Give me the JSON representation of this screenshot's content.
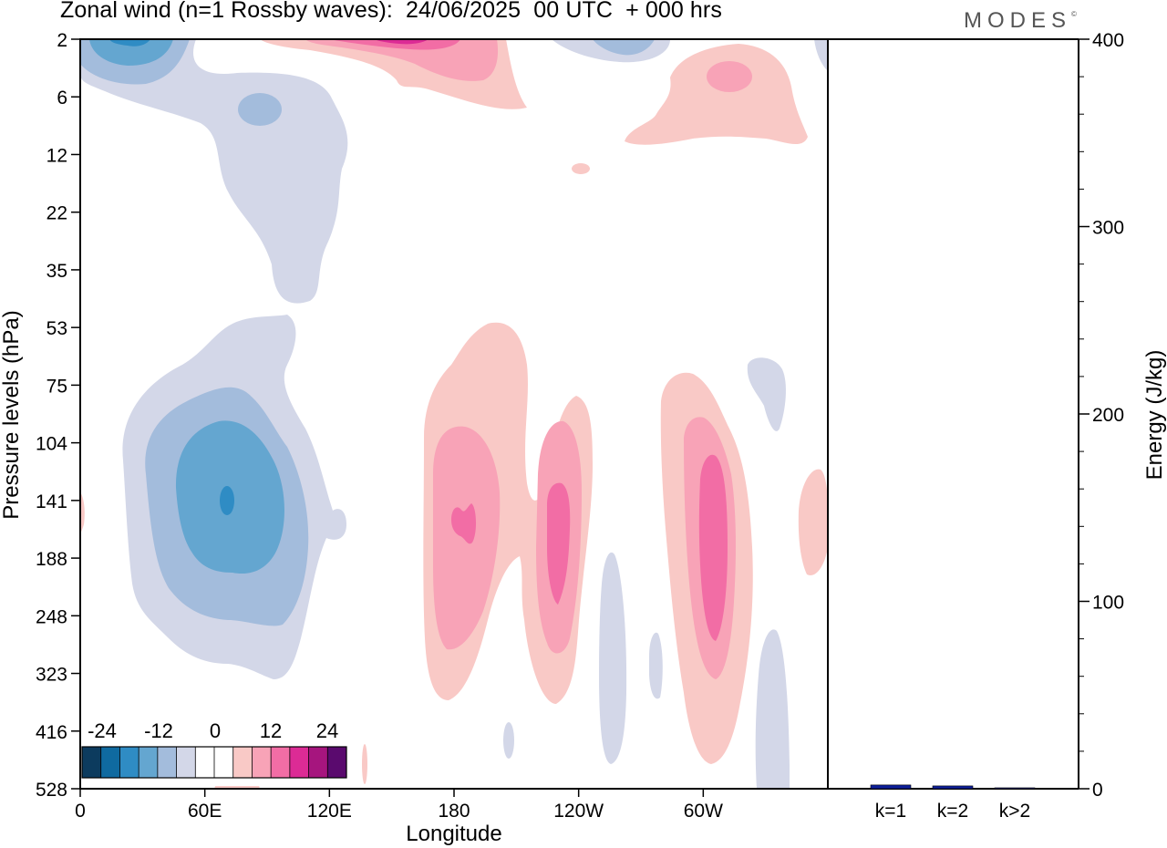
{
  "header": {
    "title": "Zonal wind (n=1 Rossby waves):  24/06/2025  00 UTC  + 000 hrs",
    "brand": "MODES",
    "brand_mark": "©"
  },
  "chart_data": [
    {
      "type": "heatmap",
      "subtype": "filled-contour",
      "xlabel": "Longitude",
      "ylabel": "Pressure levels (hPa)",
      "x_ticks": [
        "0",
        "60E",
        "120E",
        "180",
        "120W",
        "60W"
      ],
      "x_tick_values": [
        0,
        60,
        120,
        180,
        240,
        300
      ],
      "xlim": [
        0,
        360
      ],
      "y_ticks": [
        "2",
        "6",
        "12",
        "22",
        "35",
        "53",
        "75",
        "104",
        "141",
        "188",
        "248",
        "323",
        "416",
        "528"
      ],
      "y_scale": "pressure levels, top-down",
      "colorbar": {
        "labels": [
          "-24",
          "-12",
          "0",
          "12",
          "24"
        ],
        "colors": [
          "#0c3b5e",
          "#0f6aa0",
          "#2f8cc4",
          "#64a6d0",
          "#a3bcdc",
          "#d3d7e8",
          "#ffffff",
          "#ffffff",
          "#f9c9c6",
          "#f8a3b7",
          "#f26da5",
          "#dc2b95",
          "#a6157e",
          "#5a0a6e"
        ]
      },
      "features": [
        {
          "name": "negative core near 70E, 141 hPa",
          "lon": 70,
          "level": 141,
          "value": -20
        },
        {
          "name": "negative upper core near 20E, 2 hPa",
          "lon": 20,
          "level": 2,
          "value": -12
        },
        {
          "name": "positive core near 185E, 141 hPa",
          "lon": 185,
          "level": 141,
          "value": 14
        },
        {
          "name": "positive core near 115W, 160 hPa",
          "lon": 245,
          "level": 160,
          "value": 14
        },
        {
          "name": "positive core near 55W, 150 hPa",
          "lon": 305,
          "level": 150,
          "value": 14
        },
        {
          "name": "positive upper core near 150E, 2 hPa",
          "lon": 150,
          "level": 2,
          "value": 14
        }
      ]
    },
    {
      "type": "bar",
      "categories": [
        "k=1",
        "k=2",
        "k>2"
      ],
      "values": [
        2,
        1.5,
        0.5
      ],
      "ylabel": "Energy (J/kg)",
      "ylim": [
        0,
        400
      ],
      "y_ticks": [
        "0",
        "100",
        "200",
        "300",
        "400"
      ],
      "bar_color": "#0d1f99"
    }
  ]
}
